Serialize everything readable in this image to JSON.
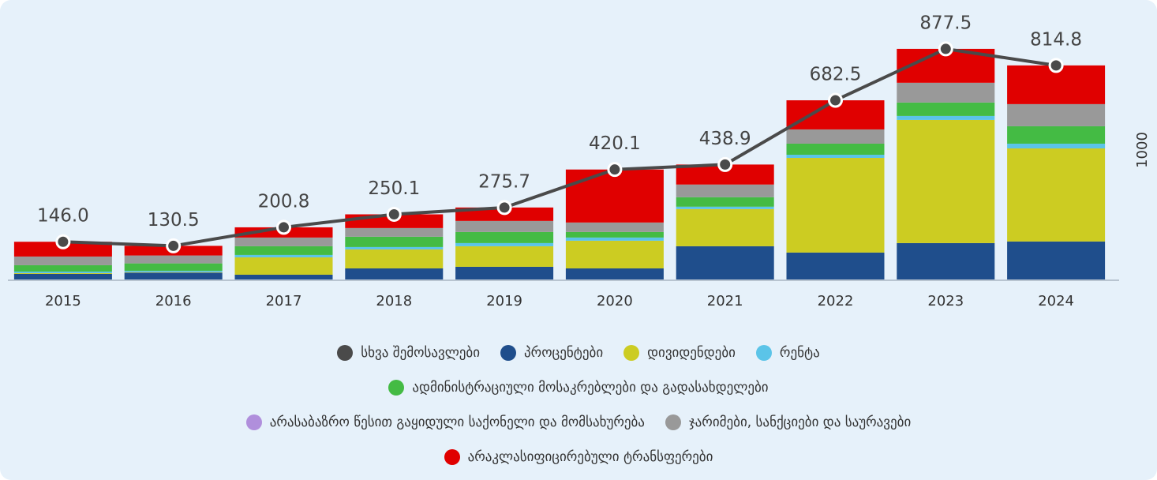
{
  "chart_data": {
    "type": "bar",
    "stacked": true,
    "y_axis_label": "1000",
    "categories": [
      "2015",
      "2016",
      "2017",
      "2018",
      "2019",
      "2020",
      "2021",
      "2022",
      "2023",
      "2024"
    ],
    "ylim": [
      0,
      1000
    ],
    "series": [
      {
        "name": "სხვა შემოსავლები",
        "type": "line",
        "color": "#4a4a4a",
        "values": [
          146.0,
          130.5,
          200.8,
          250.1,
          275.7,
          420.1,
          438.9,
          682.5,
          877.5,
          814.8
        ],
        "value_labels": [
          "146.0",
          "130.5",
          "200.8",
          "250.1",
          "275.7",
          "420.1",
          "438.9",
          "682.5",
          "877.5",
          "814.8"
        ]
      },
      {
        "name": "პროცენტები",
        "color": "#1f4e8c",
        "values": [
          24,
          29,
          21,
          45,
          51,
          45,
          129,
          105,
          141,
          147
        ]
      },
      {
        "name": "დივიდენდები",
        "color": "#cccc22",
        "values": [
          3,
          2,
          66,
          72,
          78,
          105,
          141,
          359,
          467,
          353
        ]
      },
      {
        "name": "რენტა",
        "color": "#5bc4e8",
        "values": [
          6,
          5,
          9,
          9,
          12,
          12,
          9,
          12,
          15,
          18
        ]
      },
      {
        "name": "ადმინისტრაციული მოსაკრებლები და გადასახდელები",
        "color": "#44bb44",
        "values": [
          24,
          28,
          33,
          39,
          42,
          21,
          36,
          42,
          51,
          66
        ]
      },
      {
        "name": "არასაბაზრო წესით გაყიდული საქონელი და მომსახურება",
        "color": "#b08fdc",
        "values": [
          0,
          0,
          0,
          0,
          0,
          0,
          0,
          0,
          0,
          0
        ]
      },
      {
        "name": "ჯარიმები, სანქციები და საურავები",
        "color": "#999999",
        "values": [
          33,
          30,
          33,
          33,
          42,
          36,
          48,
          54,
          75,
          84
        ]
      },
      {
        "name": "არაკლასიფიცირებული ტრანსფერები",
        "color": "#e00000",
        "values": [
          56,
          36.5,
          38.8,
          52,
          51,
          201,
          75.9,
          110.5,
          128.5,
          146.8
        ]
      }
    ]
  }
}
